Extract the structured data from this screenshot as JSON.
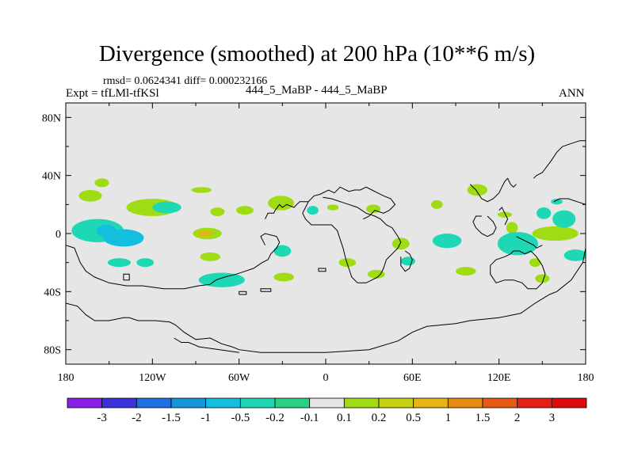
{
  "chart_data": {
    "type": "heatmap",
    "title": "Divergence (smoothed) at 200 hPa (10**6 m/s)",
    "stats_line": "rmsd= 0.0624341 diff= 0.000232166",
    "expt_label": "Expt = tfLMl-tfKSl",
    "case_label": "444_5_MaBP - 444_5_MaBP",
    "season": "ANN",
    "x_range": [
      -180,
      180
    ],
    "y_range": [
      -90,
      90
    ],
    "x_ticks": [
      {
        "value": -180,
        "label": "180"
      },
      {
        "value": -120,
        "label": "120W"
      },
      {
        "value": -60,
        "label": "60W"
      },
      {
        "value": 0,
        "label": "0"
      },
      {
        "value": 60,
        "label": "60E"
      },
      {
        "value": 120,
        "label": "120E"
      },
      {
        "value": 180,
        "label": "180"
      }
    ],
    "y_ticks": [
      {
        "value": 80,
        "label": "80N"
      },
      {
        "value": 40,
        "label": "40N"
      },
      {
        "value": 0,
        "label": "0"
      },
      {
        "value": -40,
        "label": "40S"
      },
      {
        "value": -80,
        "label": "80S"
      }
    ],
    "levels": [
      "-3",
      "-2",
      "-1.5",
      "-1",
      "-0.5",
      "-0.2",
      "-0.1",
      "0.1",
      "0.2",
      "0.5",
      "1",
      "1.5",
      "2",
      "3"
    ],
    "colors": [
      "#8a1ee6",
      "#3c32dc",
      "#1e6ee6",
      "#1496dc",
      "#14bede",
      "#1ed7b4",
      "#28d282",
      "#e6e6e6",
      "#a0dc14",
      "#c8d214",
      "#e6b414",
      "#e68c14",
      "#e65a14",
      "#e61e14",
      "#dc0a0a"
    ],
    "background_color": "#e6e6e6",
    "features": [
      {
        "lon": -163,
        "lat": 26,
        "rx": 8,
        "ry": 4,
        "level": 8
      },
      {
        "lon": -158,
        "lat": 2,
        "rx": 18,
        "ry": 8,
        "level": 5
      },
      {
        "lon": -152,
        "lat": 2,
        "rx": 7,
        "ry": 4,
        "level": 4
      },
      {
        "lon": -140,
        "lat": -3,
        "rx": 14,
        "ry": 6,
        "level": 4
      },
      {
        "lon": -143,
        "lat": -20,
        "rx": 8,
        "ry": 3,
        "level": 5
      },
      {
        "lon": -125,
        "lat": -20,
        "rx": 6,
        "ry": 3,
        "level": 5
      },
      {
        "lon": -120,
        "lat": 18,
        "rx": 18,
        "ry": 6,
        "level": 8
      },
      {
        "lon": -110,
        "lat": 18,
        "rx": 10,
        "ry": 4,
        "level": 5
      },
      {
        "lon": -155,
        "lat": 35,
        "rx": 5,
        "ry": 3,
        "level": 8
      },
      {
        "lon": -86,
        "lat": 30,
        "rx": 7,
        "ry": 2,
        "level": 8
      },
      {
        "lon": -82,
        "lat": 0,
        "rx": 10,
        "ry": 4,
        "level": 8
      },
      {
        "lon": -84,
        "lat": 0,
        "rx": 5,
        "ry": 2,
        "level": 10
      },
      {
        "lon": -80,
        "lat": -16,
        "rx": 7,
        "ry": 3,
        "level": 8
      },
      {
        "lon": -72,
        "lat": -32,
        "rx": 16,
        "ry": 5,
        "level": 5
      },
      {
        "lon": -75,
        "lat": 15,
        "rx": 5,
        "ry": 3,
        "level": 8
      },
      {
        "lon": -56,
        "lat": 16,
        "rx": 6,
        "ry": 3,
        "level": 8
      },
      {
        "lon": -31,
        "lat": 21,
        "rx": 9,
        "ry": 5,
        "level": 8
      },
      {
        "lon": -30,
        "lat": -12,
        "rx": 6,
        "ry": 4,
        "level": 5
      },
      {
        "lon": -29,
        "lat": -30,
        "rx": 7,
        "ry": 3,
        "level": 8
      },
      {
        "lon": -9,
        "lat": 16,
        "rx": 4,
        "ry": 3,
        "level": 5
      },
      {
        "lon": 5,
        "lat": 18,
        "rx": 4,
        "ry": 2,
        "level": 8
      },
      {
        "lon": 15,
        "lat": -20,
        "rx": 6,
        "ry": 3,
        "level": 8
      },
      {
        "lon": 33,
        "lat": 17,
        "rx": 5,
        "ry": 3,
        "level": 8
      },
      {
        "lon": 35,
        "lat": -28,
        "rx": 6,
        "ry": 3,
        "level": 8
      },
      {
        "lon": 52,
        "lat": -7,
        "rx": 6,
        "ry": 4,
        "level": 8
      },
      {
        "lon": 57,
        "lat": -19,
        "rx": 5,
        "ry": 3,
        "level": 5
      },
      {
        "lon": 77,
        "lat": 20,
        "rx": 4,
        "ry": 3,
        "level": 8
      },
      {
        "lon": 84,
        "lat": -5,
        "rx": 10,
        "ry": 5,
        "level": 5
      },
      {
        "lon": 97,
        "lat": -26,
        "rx": 7,
        "ry": 3,
        "level": 8
      },
      {
        "lon": 105,
        "lat": 30,
        "rx": 7,
        "ry": 4,
        "level": 8
      },
      {
        "lon": 124,
        "lat": 13,
        "rx": 5,
        "ry": 2,
        "level": 8
      },
      {
        "lon": 129,
        "lat": 4,
        "rx": 4,
        "ry": 4,
        "level": 8
      },
      {
        "lon": 133,
        "lat": -7,
        "rx": 14,
        "ry": 8,
        "level": 5
      },
      {
        "lon": 145,
        "lat": -20,
        "rx": 4,
        "ry": 3,
        "level": 8
      },
      {
        "lon": 159,
        "lat": 0,
        "rx": 16,
        "ry": 5,
        "level": 8
      },
      {
        "lon": 165,
        "lat": 10,
        "rx": 8,
        "ry": 6,
        "level": 5
      },
      {
        "lon": 150,
        "lat": -31,
        "rx": 5,
        "ry": 3,
        "level": 8
      },
      {
        "lon": 173,
        "lat": -15,
        "rx": 8,
        "ry": 4,
        "level": 5
      },
      {
        "lon": 151,
        "lat": 14,
        "rx": 5,
        "ry": 4,
        "level": 5
      },
      {
        "lon": 160,
        "lat": 22,
        "rx": 4,
        "ry": 2,
        "level": 5
      }
    ],
    "coastlines": [
      [
        [
          -180,
          -8
        ],
        [
          -174,
          -10
        ],
        [
          -170,
          -20
        ],
        [
          -166,
          -26
        ],
        [
          -160,
          -30
        ],
        [
          -150,
          -34
        ],
        [
          -138,
          -36
        ],
        [
          -127,
          -36
        ],
        [
          -112,
          -38
        ],
        [
          -98,
          -38
        ],
        [
          -88,
          -36
        ],
        [
          -80,
          -35
        ],
        [
          -76,
          -32
        ],
        [
          -70,
          -30
        ],
        [
          -62,
          -28
        ],
        [
          -56,
          -26
        ],
        [
          -50,
          -24
        ],
        [
          -44,
          -20
        ],
        [
          -40,
          -18
        ],
        [
          -38,
          -14
        ],
        [
          -34,
          -10
        ],
        [
          -32,
          -6
        ],
        [
          -34,
          -2
        ],
        [
          -42,
          0
        ],
        [
          -45,
          -2
        ],
        [
          -42,
          -8
        ]
      ],
      [
        [
          -180,
          -48
        ],
        [
          -172,
          -50
        ],
        [
          -166,
          -56
        ],
        [
          -160,
          -60
        ],
        [
          -150,
          -60
        ],
        [
          -140,
          -58
        ],
        [
          -136,
          -58
        ],
        [
          -130,
          -60
        ],
        [
          -118,
          -60
        ],
        [
          -108,
          -61
        ],
        [
          -104,
          -63
        ],
        [
          -98,
          -68
        ],
        [
          -90,
          -73
        ],
        [
          -80,
          -72
        ],
        [
          -72,
          -76
        ],
        [
          -65,
          -78
        ],
        [
          -60,
          -80
        ],
        [
          -45,
          -82
        ],
        [
          -20,
          -82
        ],
        [
          0,
          -82
        ],
        [
          30,
          -80
        ],
        [
          50,
          -74
        ],
        [
          60,
          -68
        ],
        [
          70,
          -64
        ],
        [
          90,
          -62
        ],
        [
          100,
          -60
        ],
        [
          120,
          -58
        ],
        [
          135,
          -55
        ],
        [
          145,
          -48
        ],
        [
          155,
          -42
        ],
        [
          160,
          -40
        ],
        [
          170,
          -32
        ],
        [
          178,
          -20
        ],
        [
          180,
          -10
        ]
      ],
      [
        [
          -105,
          -72
        ],
        [
          -100,
          -75
        ],
        [
          -95,
          -75
        ],
        [
          -90,
          -77
        ],
        [
          -88,
          -78
        ],
        [
          -60,
          -82
        ]
      ],
      [
        [
          -42,
          10
        ],
        [
          -40,
          14
        ],
        [
          -36,
          14
        ],
        [
          -35,
          16
        ],
        [
          -32,
          20
        ],
        [
          -30,
          18
        ],
        [
          -27,
          20
        ],
        [
          -22,
          18
        ],
        [
          -18,
          22
        ],
        [
          -12,
          22
        ],
        [
          -8,
          26
        ],
        [
          -4,
          27
        ],
        [
          2,
          30
        ],
        [
          6,
          28
        ],
        [
          10,
          32
        ],
        [
          16,
          29
        ],
        [
          20,
          30
        ],
        [
          24,
          30
        ],
        [
          28,
          32
        ],
        [
          32,
          30
        ],
        [
          36,
          28
        ],
        [
          40,
          26
        ],
        [
          45,
          24
        ],
        [
          48,
          20
        ],
        [
          44,
          16
        ],
        [
          40,
          14
        ],
        [
          34,
          16
        ],
        [
          30,
          12
        ],
        [
          26,
          10
        ]
      ],
      [
        [
          -2,
          25
        ],
        [
          4,
          24
        ],
        [
          10,
          22
        ],
        [
          16,
          20
        ],
        [
          22,
          18
        ],
        [
          28,
          14
        ],
        [
          34,
          12
        ],
        [
          38,
          10
        ],
        [
          42,
          6
        ],
        [
          46,
          4
        ],
        [
          50,
          -2
        ],
        [
          52,
          -6
        ],
        [
          50,
          -10
        ],
        [
          46,
          -14
        ],
        [
          42,
          -18
        ],
        [
          40,
          -24
        ],
        [
          38,
          -28
        ],
        [
          36,
          -30
        ],
        [
          32,
          -32
        ],
        [
          28,
          -34
        ],
        [
          22,
          -34
        ],
        [
          18,
          -30
        ],
        [
          16,
          -24
        ],
        [
          14,
          -18
        ],
        [
          12,
          -10
        ],
        [
          10,
          -4
        ],
        [
          8,
          2
        ],
        [
          4,
          6
        ],
        [
          0,
          6
        ],
        [
          -4,
          6
        ],
        [
          -10,
          6
        ],
        [
          -14,
          10
        ],
        [
          -16,
          14
        ],
        [
          -14,
          18
        ],
        [
          -12,
          22
        ]
      ],
      [
        [
          55,
          -12
        ],
        [
          58,
          -14
        ],
        [
          60,
          -18
        ],
        [
          58,
          -24
        ],
        [
          55,
          -26
        ],
        [
          52,
          -22
        ],
        [
          52,
          -16
        ]
      ],
      [
        [
          100,
          34
        ],
        [
          104,
          30
        ],
        [
          108,
          24
        ],
        [
          112,
          22
        ],
        [
          116,
          24
        ],
        [
          120,
          28
        ],
        [
          122,
          32
        ],
        [
          124,
          36
        ],
        [
          126,
          38
        ],
        [
          128,
          34
        ],
        [
          130,
          32
        ],
        [
          132,
          34
        ]
      ],
      [
        [
          112,
          12
        ],
        [
          116,
          8
        ],
        [
          118,
          4
        ],
        [
          116,
          0
        ],
        [
          112,
          -2
        ],
        [
          108,
          0
        ],
        [
          104,
          4
        ],
        [
          102,
          8
        ],
        [
          104,
          12
        ],
        [
          108,
          12
        ]
      ],
      [
        [
          120,
          16
        ],
        [
          122,
          18
        ],
        [
          124,
          14
        ],
        [
          126,
          10
        ],
        [
          124,
          6
        ]
      ],
      [
        [
          132,
          -2
        ],
        [
          136,
          -4
        ],
        [
          140,
          -6
        ],
        [
          144,
          -8
        ],
        [
          146,
          -10
        ],
        [
          150,
          -8
        ]
      ],
      [
        [
          130,
          -12
        ],
        [
          134,
          -12
        ],
        [
          138,
          -14
        ],
        [
          142,
          -12
        ],
        [
          146,
          -16
        ],
        [
          150,
          -22
        ],
        [
          152,
          -28
        ],
        [
          150,
          -34
        ],
        [
          146,
          -38
        ],
        [
          140,
          -38
        ],
        [
          136,
          -34
        ],
        [
          130,
          -32
        ],
        [
          124,
          -32
        ],
        [
          118,
          -34
        ],
        [
          114,
          -28
        ],
        [
          114,
          -22
        ],
        [
          118,
          -18
        ],
        [
          124,
          -16
        ],
        [
          128,
          -14
        ],
        [
          130,
          -12
        ]
      ],
      [
        [
          144,
          38
        ],
        [
          146,
          40
        ],
        [
          150,
          42
        ],
        [
          156,
          50
        ],
        [
          160,
          56
        ],
        [
          164,
          60
        ],
        [
          170,
          62
        ],
        [
          176,
          64
        ],
        [
          180,
          64
        ]
      ],
      [
        [
          158,
          22
        ],
        [
          162,
          24
        ],
        [
          168,
          24
        ],
        [
          174,
          22
        ],
        [
          180,
          20
        ]
      ],
      [
        [
          -140,
          -32
        ],
        [
          -136,
          -32
        ],
        [
          -136,
          -28
        ],
        [
          -140,
          -28
        ],
        [
          -140,
          -32
        ]
      ],
      [
        [
          -60,
          -42
        ],
        [
          -55,
          -42
        ],
        [
          -55,
          -40
        ],
        [
          -60,
          -40
        ],
        [
          -60,
          -42
        ]
      ],
      [
        [
          -45,
          -40
        ],
        [
          -38,
          -40
        ],
        [
          -38,
          -38
        ],
        [
          -45,
          -38
        ],
        [
          -45,
          -40
        ]
      ],
      [
        [
          -5,
          -26
        ],
        [
          0,
          -26
        ],
        [
          0,
          -24
        ],
        [
          -5,
          -24
        ],
        [
          -5,
          -26
        ]
      ]
    ]
  }
}
